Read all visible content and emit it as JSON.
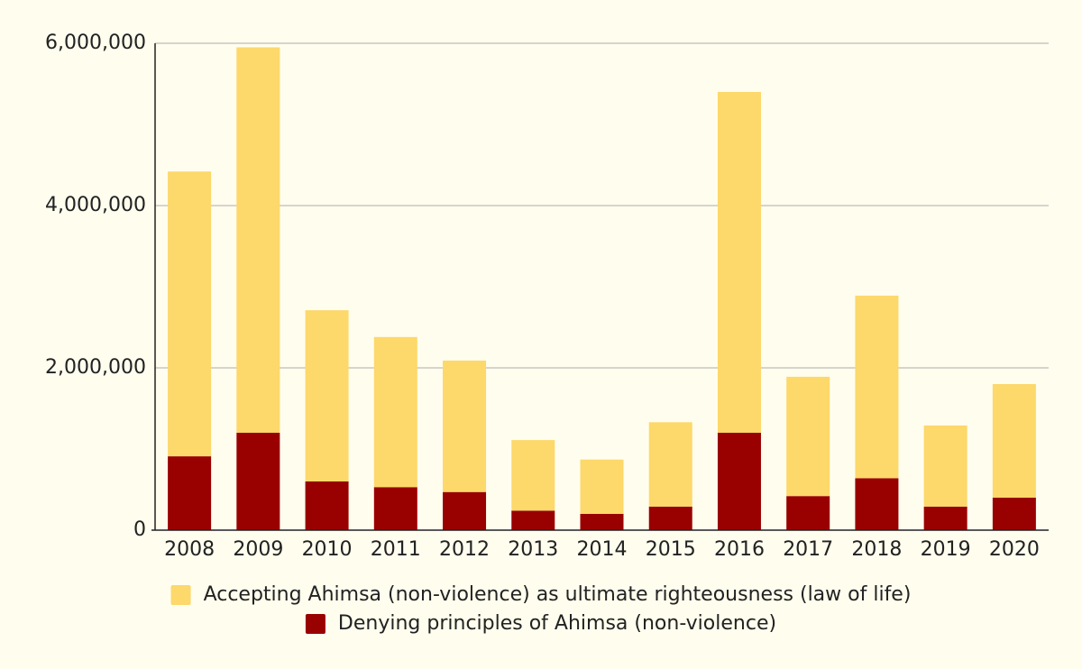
{
  "chart_data": {
    "type": "stacked_bar",
    "categories": [
      "2008",
      "2009",
      "2010",
      "2011",
      "2012",
      "2013",
      "2014",
      "2015",
      "2016",
      "2017",
      "2018",
      "2019",
      "2020"
    ],
    "series": [
      {
        "name": "Accepting Ahimsa (non-violence) as ultimate righteousness (law of life)",
        "color": "#fdd86a",
        "values": [
          3510000,
          4750000,
          2110000,
          1850000,
          1620000,
          870000,
          670000,
          1040000,
          4200000,
          1470000,
          2250000,
          1000000,
          1400000
        ]
      },
      {
        "name": "Denying principles of Ahimsa (non-violence)",
        "color": "#990000",
        "values": [
          910000,
          1200000,
          600000,
          530000,
          470000,
          240000,
          200000,
          290000,
          1200000,
          420000,
          640000,
          290000,
          400000
        ]
      }
    ],
    "ylim": [
      0,
      6000000
    ],
    "yticks": [
      0,
      {
        "value": 2000000,
        "label": "2,000,000"
      },
      {
        "value": 4000000,
        "label": "4,000,000"
      },
      {
        "value": 6000000,
        "label": "6,000,000"
      }
    ],
    "grid": true
  }
}
